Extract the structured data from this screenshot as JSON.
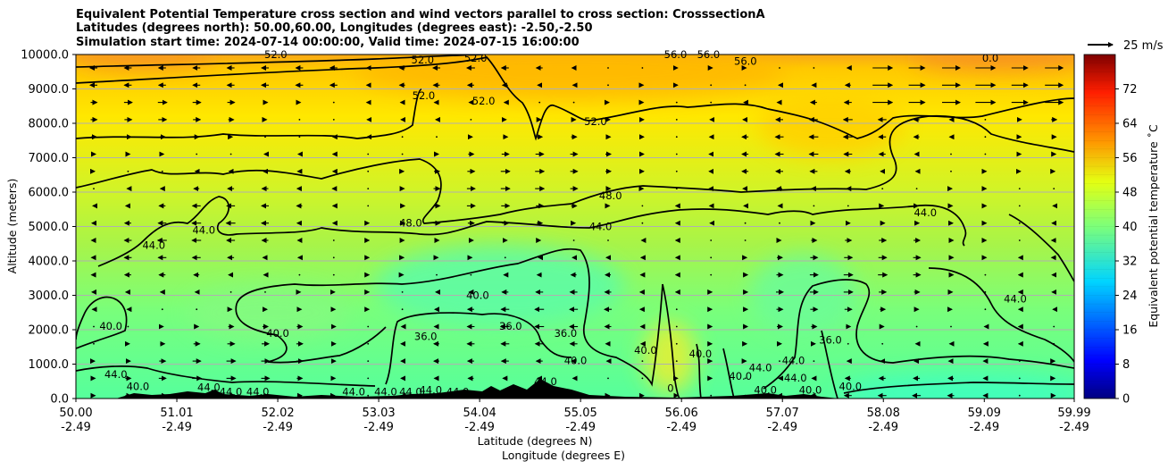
{
  "chart_data": {
    "type": "heatmap",
    "title_lines": [
      "Equivalent Potential Temperature cross section and wind vectors parallel to cross section: CrosssectionA",
      "Latitudes (degrees north): 50.00,60.00, Longitudes (degrees east): -2.50,-2.50",
      "Simulation start time: 2024-07-14 00:00:00, Valid time: 2024-07-15 16:00:00"
    ],
    "ylabel": "Altitude (meters)",
    "xlabel_lat": "Latitude (degrees N)",
    "xlabel_lon": "Longitude (degrees E)",
    "ylim": [
      0,
      10000
    ],
    "y_ticks": [
      0,
      1000,
      2000,
      3000,
      4000,
      5000,
      6000,
      7000,
      8000,
      9000,
      10000
    ],
    "y_tick_labels": [
      "0.0",
      "1000.0",
      "2000.0",
      "3000.0",
      "4000.0",
      "5000.0",
      "6000.0",
      "7000.0",
      "8000.0",
      "9000.0",
      "10000.0"
    ],
    "x_range": [
      50.0,
      59.99
    ],
    "x_ticks": [
      {
        "lat": "50.00",
        "lon": "-2.49",
        "value": 50.0
      },
      {
        "lat": "51.01",
        "lon": "-2.49",
        "value": 51.01
      },
      {
        "lat": "52.02",
        "lon": "-2.49",
        "value": 52.02
      },
      {
        "lat": "53.03",
        "lon": "-2.49",
        "value": 53.03
      },
      {
        "lat": "54.04",
        "lon": "-2.49",
        "value": 54.04
      },
      {
        "lat": "55.05",
        "lon": "-2.49",
        "value": 55.05
      },
      {
        "lat": "56.06",
        "lon": "-2.49",
        "value": 56.06
      },
      {
        "lat": "57.07",
        "lon": "-2.49",
        "value": 57.07
      },
      {
        "lat": "58.08",
        "lon": "-2.49",
        "value": 58.08
      },
      {
        "lat": "59.09",
        "lon": "-2.49",
        "value": 59.09
      },
      {
        "lat": "59.99",
        "lon": "-2.49",
        "value": 59.99
      }
    ],
    "colorbar": {
      "label": "Equivalent potential temperature ˚C",
      "range": [
        0,
        80
      ],
      "ticks": [
        0,
        8,
        16,
        24,
        32,
        40,
        48,
        56,
        64,
        72
      ]
    },
    "quiver_key": "25 m/s",
    "contour_labels": [
      {
        "text": "40.0",
        "lat": 50.35,
        "alt": 2100
      },
      {
        "text": "44.0",
        "lat": 50.4,
        "alt": 700
      },
      {
        "text": "40.0",
        "lat": 50.62,
        "alt": 350
      },
      {
        "text": "44.0",
        "lat": 50.78,
        "alt": 4450
      },
      {
        "text": "44.0",
        "lat": 51.28,
        "alt": 4900
      },
      {
        "text": "44.0",
        "lat": 51.33,
        "alt": 320
      },
      {
        "text": "44.0",
        "lat": 51.55,
        "alt": 200
      },
      {
        "text": "44.0",
        "lat": 51.82,
        "alt": 200
      },
      {
        "text": "40.0",
        "lat": 52.02,
        "alt": 1900
      },
      {
        "text": "52.0",
        "lat": 52.0,
        "alt": 10000
      },
      {
        "text": "44.0",
        "lat": 52.78,
        "alt": 200
      },
      {
        "text": "44.0",
        "lat": 53.1,
        "alt": 200
      },
      {
        "text": "44.0",
        "lat": 53.35,
        "alt": 200
      },
      {
        "text": "48.0",
        "lat": 53.35,
        "alt": 5100
      },
      {
        "text": "52.0",
        "lat": 53.47,
        "alt": 9850
      },
      {
        "text": "52.0",
        "lat": 53.48,
        "alt": 8800
      },
      {
        "text": "36.0",
        "lat": 53.5,
        "alt": 1800
      },
      {
        "text": "44.0",
        "lat": 53.55,
        "alt": 250
      },
      {
        "text": "44.0",
        "lat": 53.82,
        "alt": 200
      },
      {
        "text": "52.0",
        "lat": 54.0,
        "alt": 9900
      },
      {
        "text": "40.0",
        "lat": 54.02,
        "alt": 3000
      },
      {
        "text": "52.0",
        "lat": 54.08,
        "alt": 8650
      },
      {
        "text": "36.0",
        "lat": 54.35,
        "alt": 2100
      },
      {
        "text": "44.0",
        "lat": 54.7,
        "alt": 500
      },
      {
        "text": "40.0",
        "lat": 55.0,
        "alt": 1100
      },
      {
        "text": "36.0",
        "lat": 54.9,
        "alt": 1900
      },
      {
        "text": "52.0",
        "lat": 55.2,
        "alt": 8050
      },
      {
        "text": "48.0",
        "lat": 55.35,
        "alt": 5900
      },
      {
        "text": "44.0",
        "lat": 55.25,
        "alt": 5000
      },
      {
        "text": "40.0",
        "lat": 55.7,
        "alt": 1400
      },
      {
        "text": "56.0",
        "lat": 56.0,
        "alt": 10000
      },
      {
        "text": "56.0",
        "lat": 56.33,
        "alt": 10000
      },
      {
        "text": "0",
        "lat": 55.95,
        "alt": 300
      },
      {
        "text": "40.0",
        "lat": 56.25,
        "alt": 1300
      },
      {
        "text": "40.0",
        "lat": 56.65,
        "alt": 650
      },
      {
        "text": "44.0",
        "lat": 56.85,
        "alt": 900
      },
      {
        "text": "40.0",
        "lat": 56.9,
        "alt": 250
      },
      {
        "text": "56.0",
        "lat": 56.7,
        "alt": 9800
      },
      {
        "text": "44.0",
        "lat": 57.18,
        "alt": 1100
      },
      {
        "text": "44.0",
        "lat": 57.2,
        "alt": 600
      },
      {
        "text": "40.0",
        "lat": 57.35,
        "alt": 250
      },
      {
        "text": "36.0",
        "lat": 57.55,
        "alt": 1700
      },
      {
        "text": "40.0",
        "lat": 57.75,
        "alt": 350
      },
      {
        "text": "44.0",
        "lat": 58.5,
        "alt": 5400
      },
      {
        "text": "0.0",
        "lat": 59.15,
        "alt": 9900
      },
      {
        "text": "44.0",
        "lat": 59.4,
        "alt": 2900
      }
    ]
  }
}
